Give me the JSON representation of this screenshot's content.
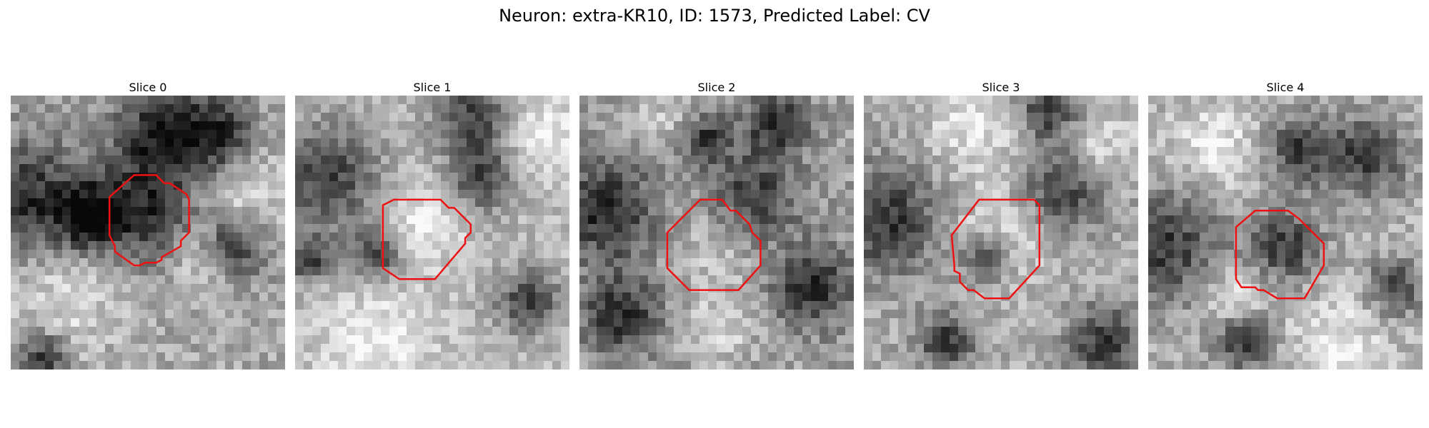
{
  "figure": {
    "title": "Neuron: extra-KR10, ID: 1573, Predicted Label: CV",
    "outline_color": "#ee1111"
  },
  "slices": [
    {
      "title": "Slice 0",
      "seed": 11,
      "bright": 168,
      "contrast": 70,
      "dark_blobs": [
        [
          0.06,
          0.38,
          0.16
        ],
        [
          0.55,
          0.13,
          0.12
        ],
        [
          0.48,
          0.42,
          0.14
        ],
        [
          0.28,
          0.45,
          0.08
        ],
        [
          0.75,
          0.15,
          0.1
        ],
        [
          0.12,
          0.95,
          0.06
        ],
        [
          0.82,
          0.55,
          0.08
        ]
      ],
      "light_blobs": [
        [
          0.85,
          0.35,
          0.12
        ],
        [
          0.2,
          0.72,
          0.15
        ],
        [
          0.68,
          0.6,
          0.08
        ]
      ],
      "outline": [
        [
          0.36,
          0.37
        ],
        [
          0.45,
          0.29
        ],
        [
          0.53,
          0.29
        ],
        [
          0.56,
          0.32
        ],
        [
          0.58,
          0.32
        ],
        [
          0.64,
          0.36
        ],
        [
          0.65,
          0.38
        ],
        [
          0.65,
          0.5
        ],
        [
          0.62,
          0.53
        ],
        [
          0.62,
          0.55
        ],
        [
          0.55,
          0.59
        ],
        [
          0.55,
          0.6
        ],
        [
          0.53,
          0.61
        ],
        [
          0.49,
          0.61
        ],
        [
          0.47,
          0.62
        ],
        [
          0.45,
          0.62
        ],
        [
          0.38,
          0.57
        ],
        [
          0.38,
          0.55
        ],
        [
          0.36,
          0.51
        ]
      ]
    },
    {
      "title": "Slice 1",
      "seed": 23,
      "bright": 185,
      "contrast": 60,
      "dark_blobs": [
        [
          0.12,
          0.3,
          0.14
        ],
        [
          0.68,
          0.3,
          0.09
        ],
        [
          0.65,
          0.07,
          0.1
        ],
        [
          0.85,
          0.75,
          0.08
        ],
        [
          0.3,
          0.58,
          0.07
        ],
        [
          0.05,
          0.6,
          0.06
        ]
      ],
      "light_blobs": [
        [
          0.45,
          0.45,
          0.12
        ],
        [
          0.9,
          0.15,
          0.12
        ],
        [
          0.3,
          0.9,
          0.14
        ]
      ],
      "outline": [
        [
          0.32,
          0.4
        ],
        [
          0.36,
          0.38
        ],
        [
          0.53,
          0.38
        ],
        [
          0.56,
          0.41
        ],
        [
          0.58,
          0.41
        ],
        [
          0.64,
          0.47
        ],
        [
          0.64,
          0.5
        ],
        [
          0.62,
          0.52
        ],
        [
          0.62,
          0.54
        ],
        [
          0.51,
          0.67
        ],
        [
          0.38,
          0.67
        ],
        [
          0.32,
          0.63
        ]
      ]
    },
    {
      "title": "Slice 2",
      "seed": 37,
      "bright": 160,
      "contrast": 72,
      "dark_blobs": [
        [
          0.1,
          0.42,
          0.13
        ],
        [
          0.62,
          0.38,
          0.12
        ],
        [
          0.72,
          0.1,
          0.08
        ],
        [
          0.85,
          0.7,
          0.1
        ],
        [
          0.15,
          0.8,
          0.1
        ],
        [
          0.45,
          0.15,
          0.07
        ]
      ],
      "light_blobs": [
        [
          0.52,
          0.5,
          0.13
        ],
        [
          0.35,
          0.1,
          0.09
        ],
        [
          0.5,
          0.85,
          0.09
        ]
      ],
      "outline": [
        [
          0.32,
          0.5
        ],
        [
          0.44,
          0.38
        ],
        [
          0.52,
          0.38
        ],
        [
          0.55,
          0.42
        ],
        [
          0.57,
          0.42
        ],
        [
          0.62,
          0.47
        ],
        [
          0.63,
          0.5
        ],
        [
          0.66,
          0.53
        ],
        [
          0.66,
          0.62
        ],
        [
          0.58,
          0.71
        ],
        [
          0.4,
          0.71
        ],
        [
          0.32,
          0.63
        ]
      ]
    },
    {
      "title": "Slice 3",
      "seed": 51,
      "bright": 172,
      "contrast": 68,
      "dark_blobs": [
        [
          0.08,
          0.45,
          0.14
        ],
        [
          0.72,
          0.35,
          0.11
        ],
        [
          0.68,
          0.05,
          0.08
        ],
        [
          0.88,
          0.9,
          0.09
        ],
        [
          0.3,
          0.9,
          0.07
        ],
        [
          0.45,
          0.6,
          0.06
        ]
      ],
      "light_blobs": [
        [
          0.52,
          0.48,
          0.13
        ],
        [
          0.4,
          0.12,
          0.12
        ],
        [
          0.85,
          0.18,
          0.1
        ]
      ],
      "outline": [
        [
          0.32,
          0.51
        ],
        [
          0.42,
          0.38
        ],
        [
          0.62,
          0.38
        ],
        [
          0.64,
          0.4
        ],
        [
          0.64,
          0.62
        ],
        [
          0.53,
          0.74
        ],
        [
          0.44,
          0.74
        ],
        [
          0.4,
          0.71
        ],
        [
          0.38,
          0.71
        ],
        [
          0.35,
          0.68
        ],
        [
          0.35,
          0.65
        ],
        [
          0.33,
          0.64
        ],
        [
          0.33,
          0.62
        ]
      ]
    },
    {
      "title": "Slice 4",
      "seed": 67,
      "bright": 178,
      "contrast": 68,
      "dark_blobs": [
        [
          0.06,
          0.55,
          0.15
        ],
        [
          0.8,
          0.22,
          0.1
        ],
        [
          0.55,
          0.2,
          0.09
        ],
        [
          0.5,
          0.55,
          0.09
        ],
        [
          0.9,
          0.7,
          0.07
        ],
        [
          0.35,
          0.9,
          0.07
        ]
      ],
      "light_blobs": [
        [
          0.25,
          0.2,
          0.12
        ],
        [
          0.7,
          0.9,
          0.12
        ],
        [
          0.3,
          0.72,
          0.08
        ]
      ],
      "outline": [
        [
          0.32,
          0.48
        ],
        [
          0.39,
          0.42
        ],
        [
          0.51,
          0.42
        ],
        [
          0.55,
          0.45
        ],
        [
          0.64,
          0.54
        ],
        [
          0.64,
          0.62
        ],
        [
          0.57,
          0.74
        ],
        [
          0.47,
          0.74
        ],
        [
          0.42,
          0.71
        ],
        [
          0.4,
          0.71
        ],
        [
          0.39,
          0.7
        ],
        [
          0.34,
          0.7
        ],
        [
          0.32,
          0.67
        ]
      ]
    }
  ]
}
